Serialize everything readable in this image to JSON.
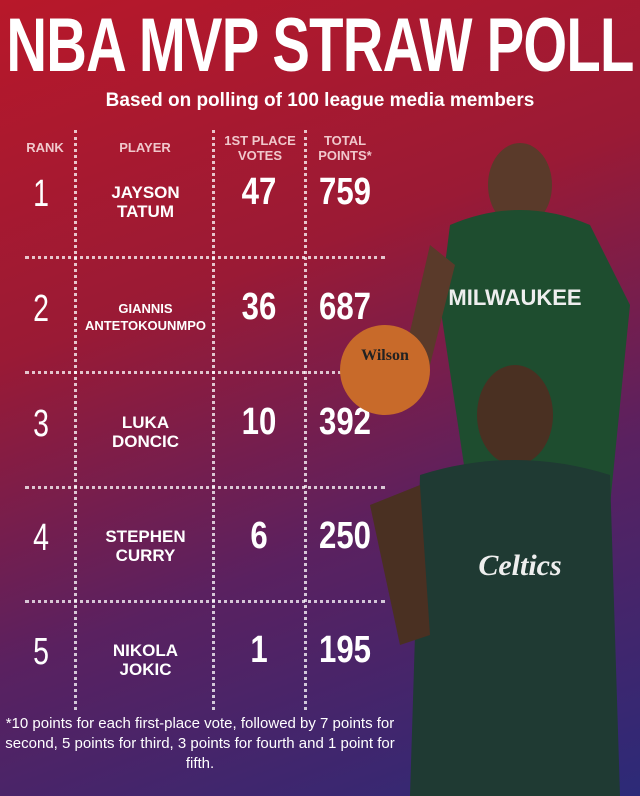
{
  "title": "NBA MVP STRAW POLL",
  "subtitle": "Based on polling of 100 league media members",
  "headers": {
    "rank": "RANK",
    "player": "PLAYER",
    "votes": "1ST PLACE\nVOTES",
    "points": "TOTAL\nPOINTS*"
  },
  "rows": [
    {
      "rank": "1",
      "name": "JAYSON\nTATUM",
      "votes": "47",
      "points": "759"
    },
    {
      "rank": "2",
      "name": "GIANNIS\nANTETOKOUNMPO",
      "votes": "36",
      "points": "687"
    },
    {
      "rank": "3",
      "name": "LUKA\nDONCIC",
      "votes": "10",
      "points": "392"
    },
    {
      "rank": "4",
      "name": "STEPHEN\nCURRY",
      "votes": "6",
      "points": "250"
    },
    {
      "rank": "5",
      "name": "NIKOLA\nJOKIC",
      "votes": "1",
      "points": "195"
    }
  ],
  "footnote": "*10 points for each first-place vote, followed by 7 points for second, 5 points for third, 3 points for fourth and 1 point for fifth.",
  "jerseys": {
    "bucks": "MILWAUKEE",
    "celtics": "Celtics",
    "ball": "Wilson"
  },
  "colors": {
    "bucks_green": "#1e4d2f",
    "celtics_green": "#1f3a33",
    "bg_red": "#b8182a",
    "bg_blue": "#2c2a78"
  }
}
